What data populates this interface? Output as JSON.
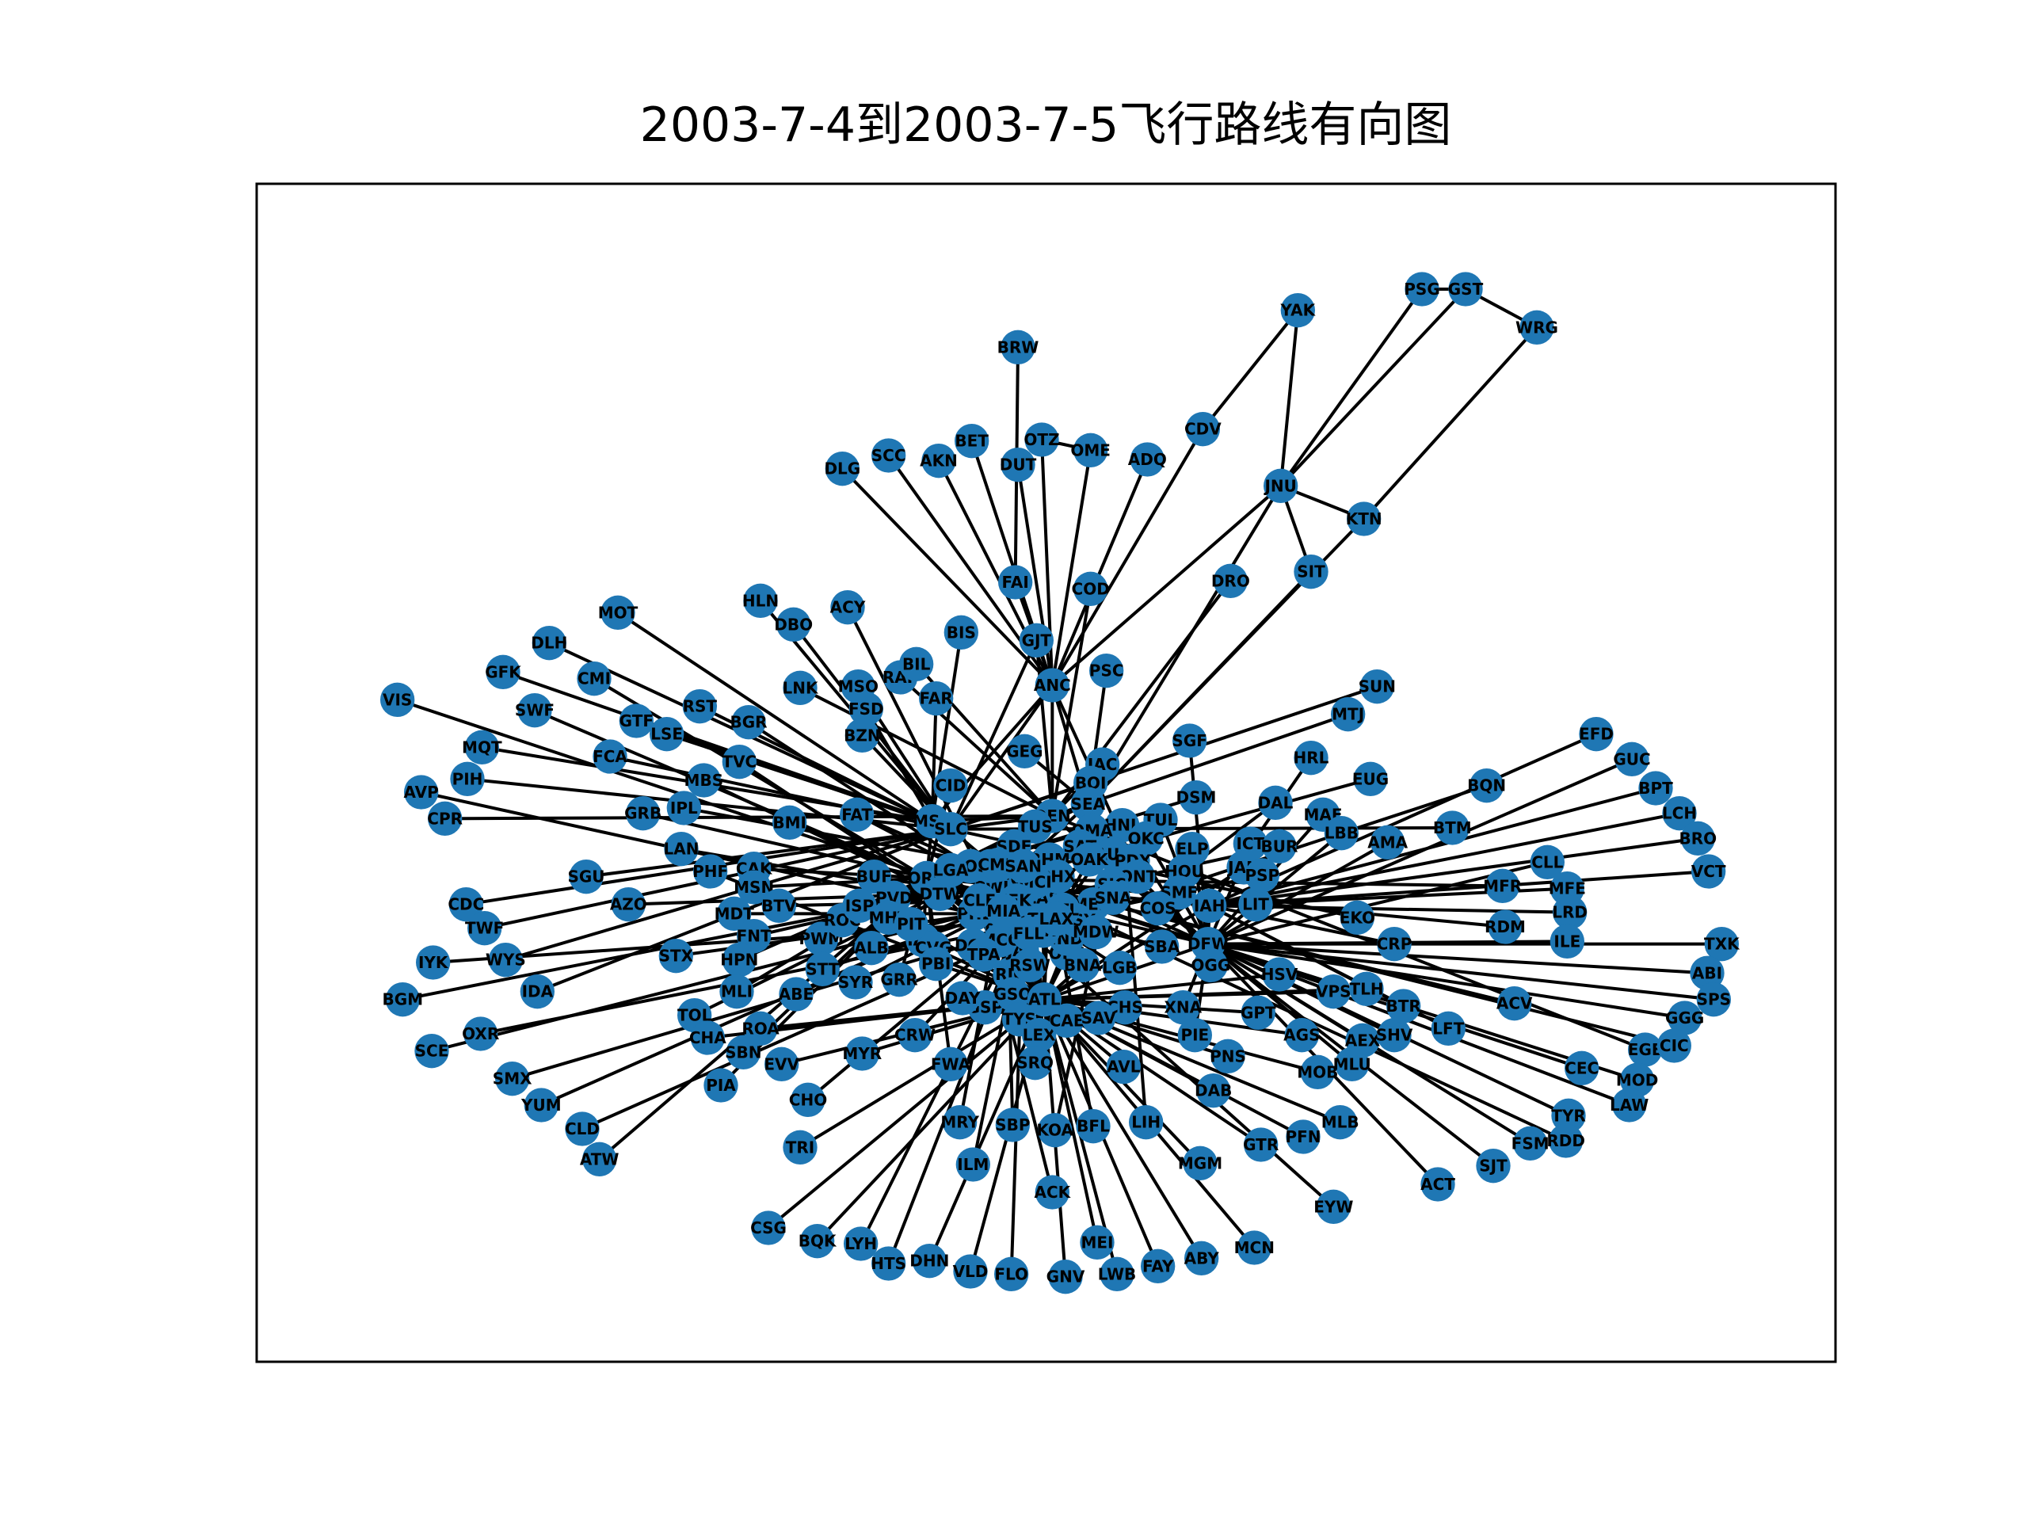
{
  "title": "2003-7-4到2003-7-5飞行路线有向图",
  "style": {
    "node_color": "#1f77b4",
    "edge_color": "#000000",
    "frame_color": "#000000"
  },
  "graph": {
    "nodes": [
      "PSG",
      "GST",
      "WRG",
      "YAK",
      "BRW",
      "CDV",
      "JNU",
      "KTN",
      "SIT",
      "DRO",
      "DLG",
      "SCC",
      "AKN",
      "BET",
      "OTZ",
      "DUT",
      "OME",
      "ADQ",
      "FAI",
      "COD",
      "GJT",
      "BIS",
      "HLN",
      "DBO",
      "ACY",
      "MOT",
      "DLH",
      "GFK",
      "CMI",
      "VIS",
      "SWF",
      "RST",
      "GTF",
      "LSE",
      "BGR",
      "LNK",
      "MSO",
      "RAP",
      "BIL",
      "FAR",
      "FSD",
      "BZN",
      "ANC",
      "PSC",
      "SUN",
      "MTJ",
      "MQT",
      "PIH",
      "FCA",
      "TVC",
      "AVP",
      "CPR",
      "MBS",
      "GRB",
      "IPL",
      "BMI",
      "FAT",
      "MSP",
      "SLC",
      "CID",
      "GEG",
      "JAC",
      "BOI",
      "SEA",
      "DEN",
      "HRL",
      "EUG",
      "EFD",
      "GUC",
      "BPT",
      "LCH",
      "BRO",
      "VCT",
      "BQN",
      "BTM",
      "MAF",
      "LBB",
      "AMA",
      "DAL",
      "DSM",
      "SGF",
      "TUL",
      "HNL",
      "OKC",
      "OMA",
      "TUS",
      "SDF",
      "SAT",
      "AUS",
      "PDX",
      "LAN",
      "SGU",
      "PHF",
      "CAK",
      "MSN",
      "AZO",
      "CDC",
      "TWF",
      "MDT",
      "BTV",
      "FNT",
      "IYK",
      "WYS",
      "STX",
      "HPN",
      "PWM",
      "BUF",
      "PVD",
      "ROC",
      "ISP",
      "MHT",
      "ORD",
      "DTW",
      "ALB",
      "IAD",
      "CVG",
      "PBI",
      "RIC",
      "BDL",
      "LGB",
      "CHS",
      "XNA",
      "PIE",
      "BGM",
      "IDA",
      "MLI",
      "ABE",
      "SYR",
      "GRR",
      "STT",
      "TOL",
      "ROA",
      "SCE",
      "OXR",
      "CHA",
      "SBN",
      "EVV",
      "MYR",
      "CRW",
      "PIA",
      "SMX",
      "YUM",
      "CLD",
      "ATW",
      "CHO",
      "TRI",
      "FWA",
      "MRY",
      "SBP",
      "KOA",
      "BFL",
      "LIH",
      "ILM",
      "ACK",
      "MGM",
      "EYW",
      "CSG",
      "BQK",
      "LYH",
      "HTS",
      "DHN",
      "VLD",
      "FLO",
      "GNV",
      "MEI",
      "LWB",
      "FAY",
      "ABY",
      "MCN",
      "GSP",
      "DAY",
      "GSO",
      "ATL",
      "TYS",
      "LEX",
      "SRQ",
      "CAE",
      "SAV",
      "AVL",
      "ELP",
      "HOU",
      "SMF",
      "IAH",
      "COS",
      "SBA",
      "DFW",
      "OGG",
      "ICT",
      "JAN",
      "LIT",
      "BUR",
      "PSP",
      "HSV",
      "GPT",
      "PNS",
      "DAB",
      "GTR",
      "PFN",
      "MLB",
      "MOB",
      "AGS",
      "AEX",
      "SHV",
      "MLU",
      "VPS",
      "TLH",
      "BTR",
      "LFT",
      "EKO",
      "CRP",
      "RDM",
      "MFR",
      "CLL",
      "MFE",
      "LRD",
      "ILE",
      "ACV",
      "TXK",
      "ABI",
      "SPS",
      "GGG",
      "CEC",
      "EGE",
      "CIC",
      "MOD",
      "LAW",
      "TYR",
      "RDD",
      "FSM",
      "SJT",
      "ACT",
      "ONT",
      "MEM",
      "MKE",
      "ORF",
      "BHM",
      "OAK",
      "SJC",
      "SNA",
      "JAX",
      "LAS",
      "PHX",
      "SFO",
      "MCI",
      "IND",
      "CLT",
      "EWR",
      "PHL",
      "BWI",
      "RDU",
      "BOS",
      "CMH",
      "LGA",
      "SAN",
      "CLE",
      "JFK",
      "MCO",
      "MIA",
      "FLL",
      "MSY",
      "STL",
      "DCA",
      "TPA",
      "PIT",
      "RSW",
      "MDW",
      "LAX",
      "BNA"
    ],
    "edges": [
      [
        "PSG",
        "GST"
      ],
      [
        "GST",
        "WRG"
      ],
      [
        "WRG",
        "KTN"
      ],
      [
        "PSG",
        "JNU"
      ],
      [
        "GST",
        "JNU"
      ],
      [
        "YAK",
        "JNU"
      ],
      [
        "YAK",
        "CDV"
      ],
      [
        "CDV",
        "ANC"
      ],
      [
        "JNU",
        "KTN"
      ],
      [
        "JNU",
        "SIT"
      ],
      [
        "KTN",
        "SEA"
      ],
      [
        "SIT",
        "SEA"
      ],
      [
        "JNU",
        "SEA"
      ],
      [
        "JNU",
        "ANC"
      ],
      [
        "BRW",
        "FAI"
      ],
      [
        "FAI",
        "ANC"
      ],
      [
        "OTZ",
        "OME"
      ],
      [
        "OTZ",
        "ANC"
      ],
      [
        "OME",
        "ANC"
      ],
      [
        "DLG",
        "ANC"
      ],
      [
        "SCC",
        "ANC"
      ],
      [
        "AKN",
        "ANC"
      ],
      [
        "BET",
        "ANC"
      ],
      [
        "DUT",
        "ANC"
      ],
      [
        "ADQ",
        "ANC"
      ],
      [
        "ANC",
        "SEA"
      ],
      [
        "ANC",
        "SLC"
      ],
      [
        "ANC",
        "MSP"
      ],
      [
        "ANC",
        "DEN"
      ],
      [
        "ANC",
        "PDX"
      ],
      [
        "DRO",
        "DEN"
      ],
      [
        "COD",
        "DEN"
      ],
      [
        "GJT",
        "DEN"
      ],
      [
        "GJT",
        "SLC"
      ],
      [
        "BIS",
        "MSP"
      ],
      [
        "HLN",
        "SLC"
      ],
      [
        "DBO",
        "SLC"
      ],
      [
        "ACY",
        "ATL"
      ],
      [
        "MOT",
        "MSP"
      ],
      [
        "DLH",
        "MSP"
      ],
      [
        "GFK",
        "MSP"
      ],
      [
        "CMI",
        "ORD"
      ],
      [
        "VIS",
        "LAX"
      ],
      [
        "SWF",
        "ORD"
      ],
      [
        "RST",
        "MSP"
      ],
      [
        "GTF",
        "SLC"
      ],
      [
        "LSE",
        "MSP"
      ],
      [
        "BGR",
        "BOS"
      ],
      [
        "LNK",
        "DEN"
      ],
      [
        "MSO",
        "SLC"
      ],
      [
        "RAP",
        "DEN"
      ],
      [
        "BIL",
        "DEN"
      ],
      [
        "FAR",
        "MSP"
      ],
      [
        "FSD",
        "MSP"
      ],
      [
        "BZN",
        "SLC"
      ],
      [
        "PSC",
        "SEA"
      ],
      [
        "SUN",
        "SLC"
      ],
      [
        "MTJ",
        "DEN"
      ],
      [
        "MQT",
        "MSP"
      ],
      [
        "PIH",
        "SLC"
      ],
      [
        "FCA",
        "SLC"
      ],
      [
        "TVC",
        "DTW"
      ],
      [
        "AVP",
        "PHL"
      ],
      [
        "CPR",
        "DEN"
      ],
      [
        "MBS",
        "DTW"
      ],
      [
        "GRB",
        "ORD"
      ],
      [
        "IPL",
        "PHX"
      ],
      [
        "BMI",
        "ORD"
      ],
      [
        "FAT",
        "LAX"
      ],
      [
        "FAT",
        "SFO"
      ],
      [
        "CID",
        "ORD"
      ],
      [
        "GEG",
        "SEA"
      ],
      [
        "JAC",
        "DEN"
      ],
      [
        "BOI",
        "SLC"
      ],
      [
        "BOI",
        "SEA"
      ],
      [
        "HRL",
        "IAH"
      ],
      [
        "EUG",
        "SFO"
      ],
      [
        "EFD",
        "IAH"
      ],
      [
        "GUC",
        "DFW"
      ],
      [
        "BPT",
        "IAH"
      ],
      [
        "LCH",
        "IAH"
      ],
      [
        "BRO",
        "IAH"
      ],
      [
        "VCT",
        "IAH"
      ],
      [
        "BQN",
        "EWR"
      ],
      [
        "BTM",
        "SLC"
      ],
      [
        "MAF",
        "DFW"
      ],
      [
        "LBB",
        "DFW"
      ],
      [
        "AMA",
        "DFW"
      ],
      [
        "DAL",
        "HOU"
      ],
      [
        "DSM",
        "ORD"
      ],
      [
        "SGF",
        "DFW"
      ],
      [
        "TUL",
        "DFW"
      ],
      [
        "HNL",
        "LAX"
      ],
      [
        "OKC",
        "DFW"
      ],
      [
        "OMA",
        "ORD"
      ],
      [
        "TUS",
        "PHX"
      ],
      [
        "SDF",
        "ATL"
      ],
      [
        "SAT",
        "DFW"
      ],
      [
        "AUS",
        "DFW"
      ],
      [
        "PDX",
        "SFO"
      ],
      [
        "LAN",
        "DTW"
      ],
      [
        "SGU",
        "SLC"
      ],
      [
        "PHF",
        "ATL"
      ],
      [
        "CAK",
        "ORD"
      ],
      [
        "MSN",
        "ORD"
      ],
      [
        "AZO",
        "DTW"
      ],
      [
        "CDC",
        "SLC"
      ],
      [
        "TWF",
        "SLC"
      ],
      [
        "MDT",
        "PHL"
      ],
      [
        "BTV",
        "JFK"
      ],
      [
        "FNT",
        "DTW"
      ],
      [
        "IYK",
        "LAX"
      ],
      [
        "WYS",
        "SLC"
      ],
      [
        "STX",
        "MIA"
      ],
      [
        "HPN",
        "ORD"
      ],
      [
        "PWM",
        "BOS"
      ],
      [
        "BUF",
        "JFK"
      ],
      [
        "PVD",
        "BWI"
      ],
      [
        "ROC",
        "ORD"
      ],
      [
        "ISP",
        "BWI"
      ],
      [
        "MHT",
        "BWI"
      ],
      [
        "ORD",
        "LGA"
      ],
      [
        "DTW",
        "EWR"
      ],
      [
        "ALB",
        "DTW"
      ],
      [
        "IAD",
        "ORD"
      ],
      [
        "CVG",
        "ATL"
      ],
      [
        "PBI",
        "ATL"
      ],
      [
        "RIC",
        "ATL"
      ],
      [
        "BDL",
        "ORD"
      ],
      [
        "LGB",
        "JFK"
      ],
      [
        "CHS",
        "ATL"
      ],
      [
        "XNA",
        "DFW"
      ],
      [
        "PIE",
        "DFW"
      ],
      [
        "BGM",
        "DTW"
      ],
      [
        "IDA",
        "SLC"
      ],
      [
        "MLI",
        "ORD"
      ],
      [
        "ABE",
        "PHL"
      ],
      [
        "SYR",
        "JFK"
      ],
      [
        "GRR",
        "ORD"
      ],
      [
        "STT",
        "MIA"
      ],
      [
        "TOL",
        "DTW"
      ],
      [
        "ROA",
        "ATL"
      ],
      [
        "SCE",
        "PHL"
      ],
      [
        "OXR",
        "LAX"
      ],
      [
        "CHA",
        "ATL"
      ],
      [
        "SBN",
        "ORD"
      ],
      [
        "EVV",
        "ATL"
      ],
      [
        "MYR",
        "ATL"
      ],
      [
        "CRW",
        "CLT"
      ],
      [
        "PIA",
        "ORD"
      ],
      [
        "SMX",
        "LAX"
      ],
      [
        "YUM",
        "PHX"
      ],
      [
        "CLD",
        "LAX"
      ],
      [
        "ATW",
        "ORD"
      ],
      [
        "CHO",
        "CLT"
      ],
      [
        "TRI",
        "ATL"
      ],
      [
        "FWA",
        "ORD"
      ],
      [
        "MRY",
        "SFO"
      ],
      [
        "SBP",
        "SFO"
      ],
      [
        "KOA",
        "HNL"
      ],
      [
        "BFL",
        "LAX"
      ],
      [
        "LIH",
        "HNL"
      ],
      [
        "ILM",
        "CLT"
      ],
      [
        "ACK",
        "BOS"
      ],
      [
        "MGM",
        "ATL"
      ],
      [
        "EYW",
        "MIA"
      ],
      [
        "CSG",
        "ATL"
      ],
      [
        "BQK",
        "ATL"
      ],
      [
        "LYH",
        "CLT"
      ],
      [
        "HTS",
        "CLT"
      ],
      [
        "DHN",
        "ATL"
      ],
      [
        "VLD",
        "ATL"
      ],
      [
        "FLO",
        "CLT"
      ],
      [
        "GNV",
        "ATL"
      ],
      [
        "MEI",
        "ATL"
      ],
      [
        "LWB",
        "CLT"
      ],
      [
        "FAY",
        "ATL"
      ],
      [
        "ABY",
        "ATL"
      ],
      [
        "MCN",
        "ATL"
      ],
      [
        "GSP",
        "ATL"
      ],
      [
        "DAY",
        "ATL"
      ],
      [
        "GSO",
        "ATL"
      ],
      [
        "TYS",
        "ATL"
      ],
      [
        "LEX",
        "ATL"
      ],
      [
        "SRQ",
        "ATL"
      ],
      [
        "CAE",
        "ATL"
      ],
      [
        "SAV",
        "ATL"
      ],
      [
        "AVL",
        "ATL"
      ],
      [
        "ELP",
        "DFW"
      ],
      [
        "HOU",
        "DFW"
      ],
      [
        "SMF",
        "LAX"
      ],
      [
        "IAH",
        "DFW"
      ],
      [
        "COS",
        "DEN"
      ],
      [
        "SBA",
        "LAX"
      ],
      [
        "OGG",
        "HNL"
      ],
      [
        "ICT",
        "DFW"
      ],
      [
        "JAN",
        "ATL"
      ],
      [
        "LIT",
        "DFW"
      ],
      [
        "BUR",
        "LAS"
      ],
      [
        "PSP",
        "LAX"
      ],
      [
        "HSV",
        "ATL"
      ],
      [
        "GPT",
        "ATL"
      ],
      [
        "PNS",
        "ATL"
      ],
      [
        "DAB",
        "ATL"
      ],
      [
        "GTR",
        "ATL"
      ],
      [
        "PFN",
        "ATL"
      ],
      [
        "MLB",
        "ATL"
      ],
      [
        "MOB",
        "ATL"
      ],
      [
        "AGS",
        "ATL"
      ],
      [
        "AEX",
        "DFW"
      ],
      [
        "SHV",
        "DFW"
      ],
      [
        "MLU",
        "DFW"
      ],
      [
        "VPS",
        "ATL"
      ],
      [
        "TLH",
        "ATL"
      ],
      [
        "BTR",
        "IAH"
      ],
      [
        "LFT",
        "IAH"
      ],
      [
        "EKO",
        "SLC"
      ],
      [
        "CRP",
        "IAH"
      ],
      [
        "RDM",
        "SFO"
      ],
      [
        "MFR",
        "SFO"
      ],
      [
        "CLL",
        "DFW"
      ],
      [
        "MFE",
        "IAH"
      ],
      [
        "LRD",
        "IAH"
      ],
      [
        "ILE",
        "DFW"
      ],
      [
        "ACV",
        "SFO"
      ],
      [
        "TXK",
        "DFW"
      ],
      [
        "ABI",
        "DFW"
      ],
      [
        "SPS",
        "DFW"
      ],
      [
        "GGG",
        "DFW"
      ],
      [
        "CEC",
        "SFO"
      ],
      [
        "EGE",
        "DEN"
      ],
      [
        "CIC",
        "SFO"
      ],
      [
        "MOD",
        "SFO"
      ],
      [
        "LAW",
        "DFW"
      ],
      [
        "TYR",
        "DFW"
      ],
      [
        "RDD",
        "SFO"
      ],
      [
        "FSM",
        "DFW"
      ],
      [
        "SJT",
        "DFW"
      ],
      [
        "ACT",
        "DFW"
      ],
      [
        "ONT",
        "LAX"
      ],
      [
        "MEM",
        "ATL"
      ],
      [
        "MKE",
        "ORD"
      ],
      [
        "ORF",
        "ATL"
      ],
      [
        "BHM",
        "ATL"
      ],
      [
        "OAK",
        "LAX"
      ],
      [
        "SJC",
        "LAX"
      ],
      [
        "SNA",
        "SFO"
      ],
      [
        "JAX",
        "ATL"
      ],
      [
        "LAS",
        "PHX"
      ],
      [
        "PHX",
        "DFW"
      ],
      [
        "SFO",
        "LAX"
      ],
      [
        "MCI",
        "STL"
      ],
      [
        "IND",
        "ORD"
      ],
      [
        "CLT",
        "ATL"
      ],
      [
        "EWR",
        "ATL"
      ],
      [
        "PHL",
        "ATL"
      ],
      [
        "BWI",
        "ATL"
      ],
      [
        "RDU",
        "ATL"
      ],
      [
        "BOS",
        "LGA"
      ],
      [
        "CMH",
        "ORD"
      ],
      [
        "SAN",
        "LAX"
      ],
      [
        "CLE",
        "ORD"
      ],
      [
        "JFK",
        "LAX"
      ],
      [
        "MCO",
        "ATL"
      ],
      [
        "MIA",
        "ATL"
      ],
      [
        "FLL",
        "ATL"
      ],
      [
        "MSY",
        "ATL"
      ],
      [
        "STL",
        "ORD"
      ],
      [
        "DCA",
        "ATL"
      ],
      [
        "TPA",
        "ATL"
      ],
      [
        "PIT",
        "ATL"
      ],
      [
        "RSW",
        "ATL"
      ],
      [
        "MDW",
        "STL"
      ],
      [
        "BNA",
        "ATL"
      ],
      [
        "DEN",
        "ORD"
      ],
      [
        "SLC",
        "DEN"
      ],
      [
        "MSP",
        "ORD"
      ],
      [
        "SEA",
        "SFO"
      ],
      [
        "DFW",
        "ATL"
      ],
      [
        "LAX",
        "ORD"
      ],
      [
        "IAH",
        "ATL"
      ],
      [
        "DTW",
        "ORD"
      ],
      [
        "SFO",
        "ORD"
      ],
      [
        "DEN",
        "DFW"
      ],
      [
        "PHX",
        "LAX"
      ],
      [
        "LAS",
        "LAX"
      ],
      [
        "ATL",
        "ORD"
      ],
      [
        "LGA",
        "ATL"
      ],
      [
        "MSP",
        "DEN"
      ],
      [
        "SLC",
        "LAX"
      ],
      [
        "SEA",
        "ORD"
      ],
      [
        "CVG",
        "ORD"
      ],
      [
        "EWR",
        "ORD"
      ],
      [
        "PHL",
        "ORD"
      ],
      [
        "BOS",
        "ORD"
      ],
      [
        "JFK",
        "ORD"
      ],
      [
        "MCO",
        "ORD"
      ],
      [
        "DFW",
        "ORD"
      ],
      [
        "IAH",
        "ORD"
      ],
      [
        "MIA",
        "ORD"
      ]
    ]
  }
}
